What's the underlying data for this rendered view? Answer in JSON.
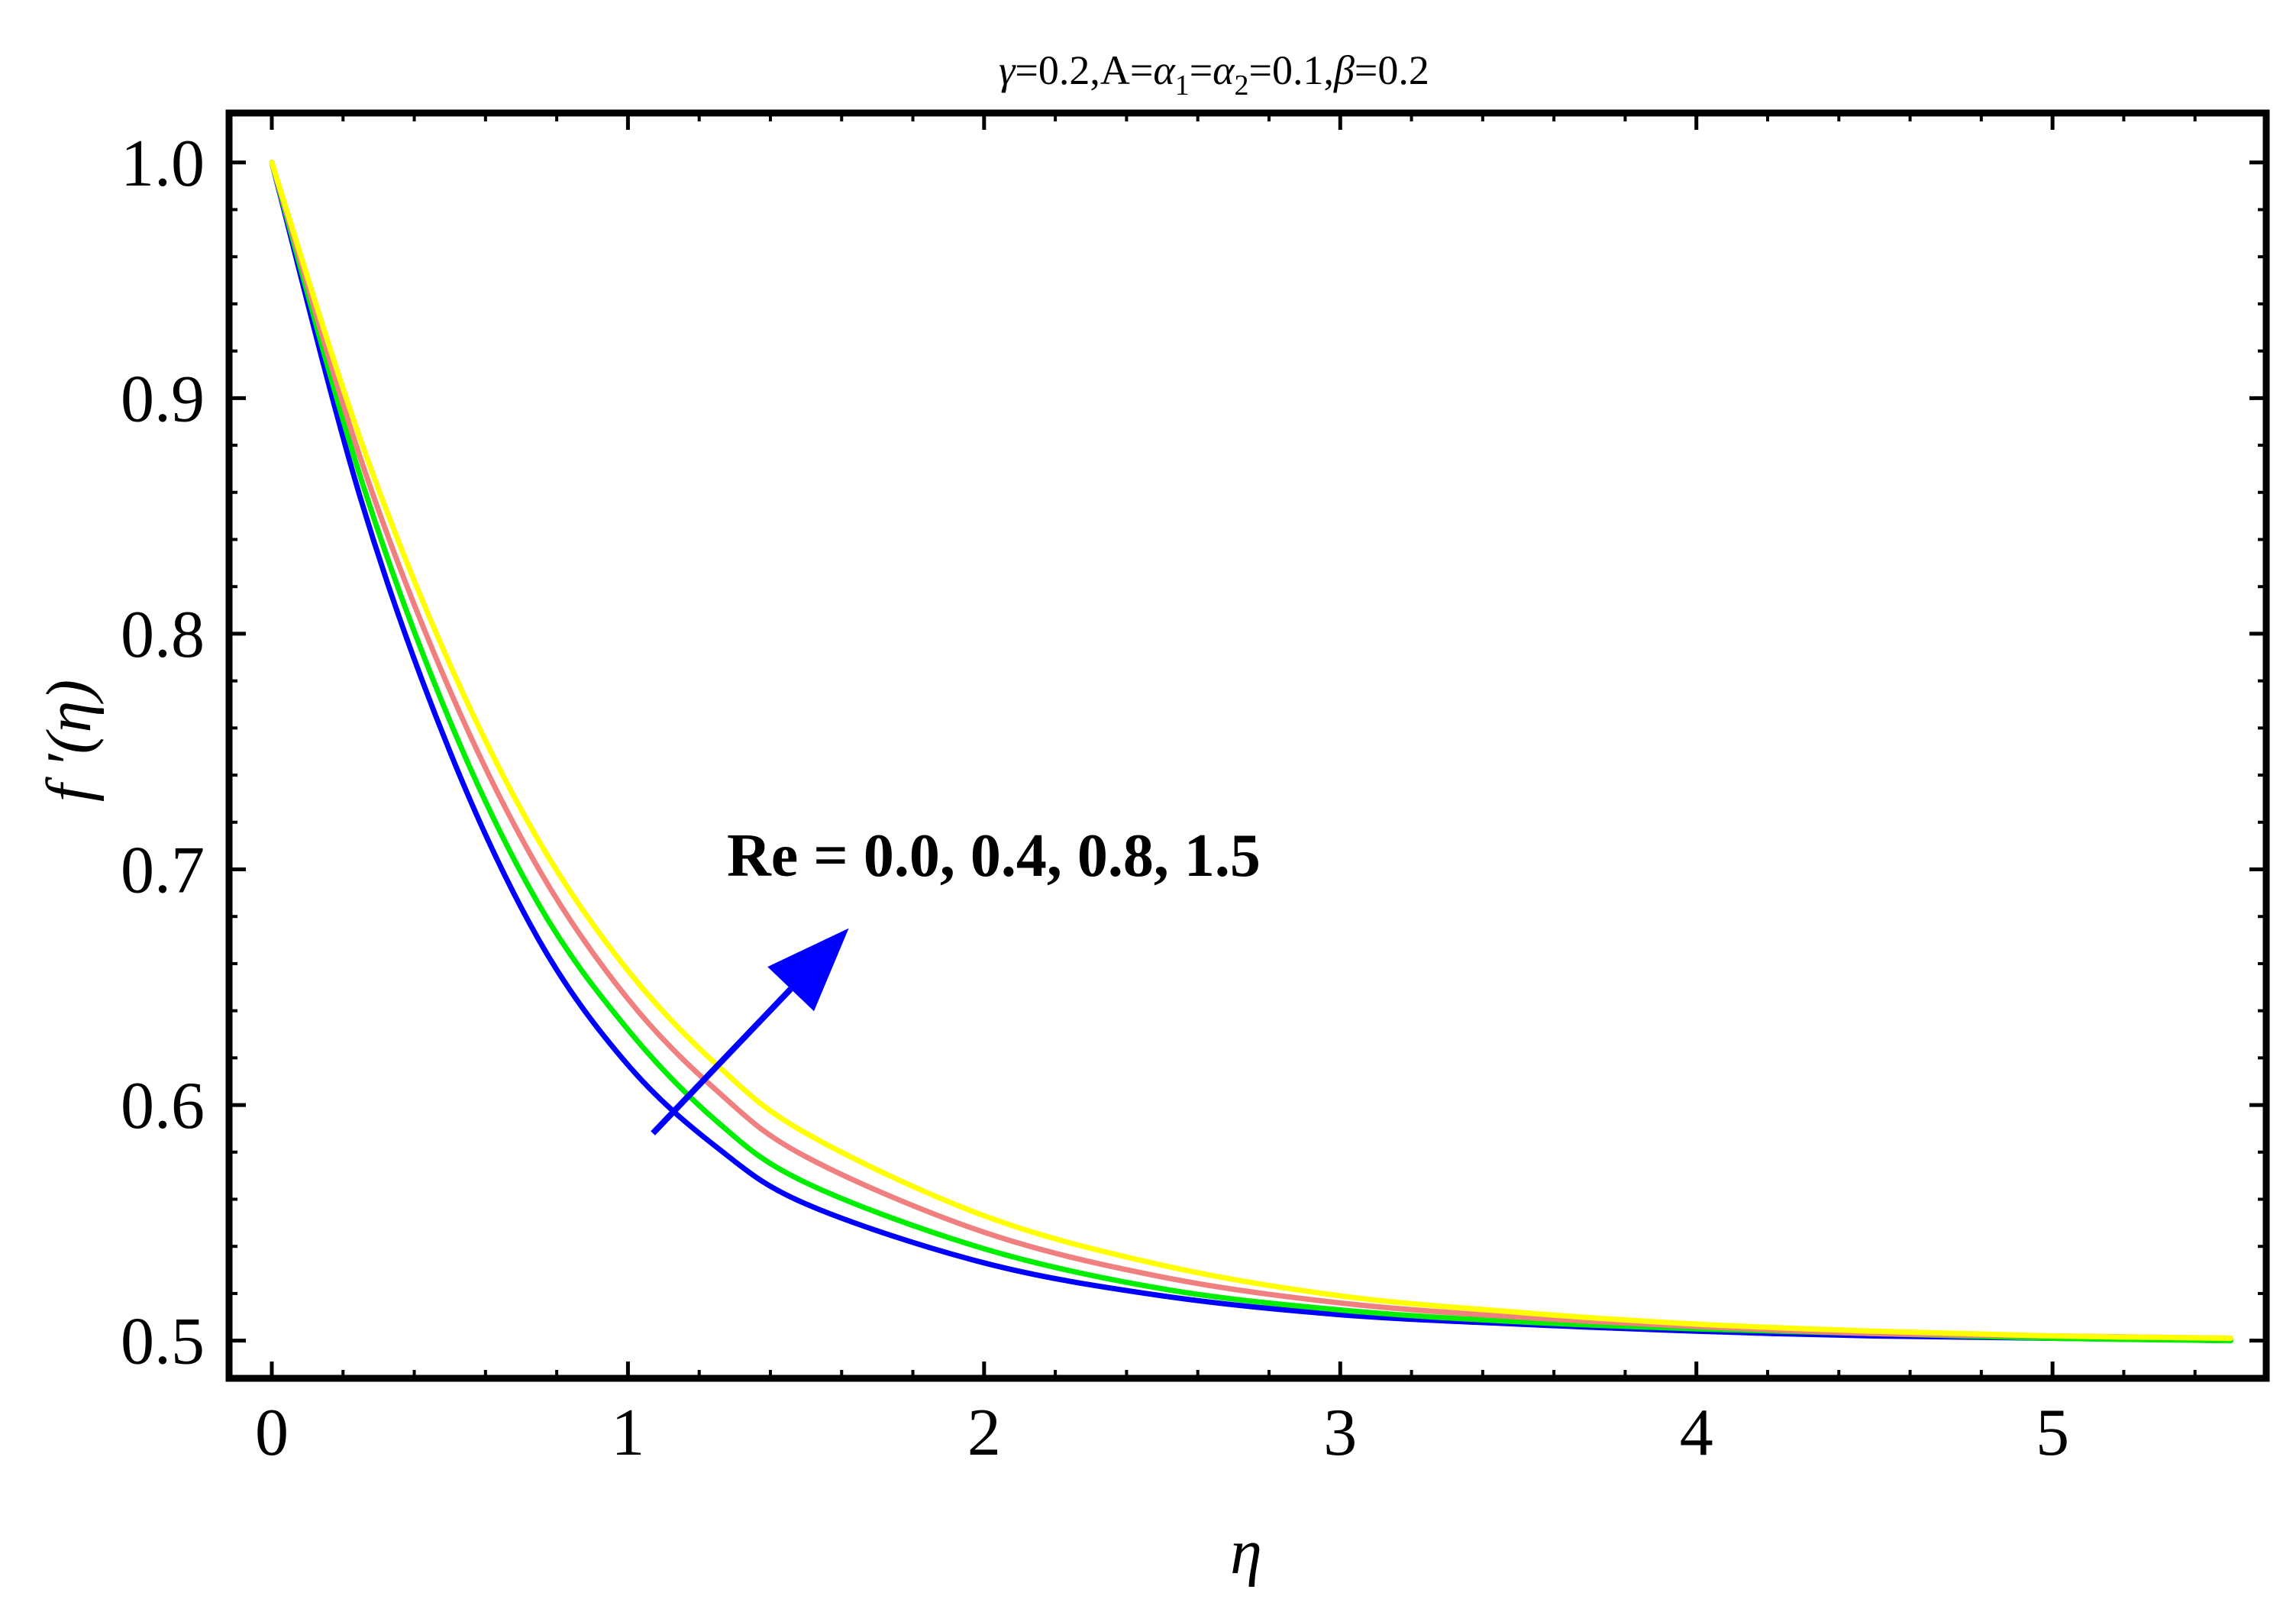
{
  "chart_data": {
    "type": "line",
    "title": "γ=0.2,A=α1=α2=0.1,β=0.2",
    "title_parts": {
      "gamma": "γ",
      "gamma_val": "=0.2,A=",
      "alpha": "α",
      "sub1": "1",
      "eq": "=",
      "sub2": "2",
      "mid": "=0.1,",
      "beta": "β",
      "beta_val": "=0.2"
    },
    "xlabel": "η",
    "ylabel": "f ′(η)",
    "xlim": [
      -0.12,
      5.6
    ],
    "ylim": [
      0.484,
      1.021
    ],
    "x_ticks": [
      0,
      1,
      2,
      3,
      4,
      5
    ],
    "x_tick_labels": [
      "0",
      "1",
      "2",
      "3",
      "4",
      "5"
    ],
    "y_ticks": [
      0.5,
      0.6,
      0.7,
      0.8,
      0.9,
      1.0
    ],
    "y_tick_labels": [
      "0.5",
      "0.6",
      "0.7",
      "0.8",
      "0.9",
      "1.0"
    ],
    "grid": false,
    "x_range": [
      0,
      5.5
    ],
    "series": [
      {
        "color": "#0000ff",
        "x": [
          0,
          0.25,
          0.5,
          0.75,
          1.0,
          1.25,
          1.5,
          2.0,
          2.5,
          3.0,
          3.5,
          4.0,
          4.5,
          5.0,
          5.5
        ],
        "values": [
          1.0,
          0.857,
          0.75,
          0.67,
          0.617,
          0.582,
          0.558,
          0.533,
          0.519,
          0.511,
          0.507,
          0.504,
          0.502,
          0.501,
          0.5
        ]
      },
      {
        "color": "#00ee00",
        "x": [
          0,
          0.25,
          0.5,
          0.75,
          1.0,
          1.25,
          1.5,
          2.0,
          2.5,
          3.0,
          3.5,
          4.0,
          4.5,
          5.0,
          5.5
        ],
        "values": [
          1.0,
          0.866,
          0.763,
          0.685,
          0.632,
          0.593,
          0.567,
          0.539,
          0.522,
          0.513,
          0.508,
          0.505,
          0.503,
          0.501,
          0.5
        ]
      },
      {
        "color": "#f08080",
        "x": [
          0,
          0.25,
          0.5,
          0.75,
          1.0,
          1.25,
          1.5,
          2.0,
          2.5,
          3.0,
          3.5,
          4.0,
          4.5,
          5.0,
          5.5
        ],
        "values": [
          1.0,
          0.874,
          0.776,
          0.7,
          0.645,
          0.606,
          0.578,
          0.546,
          0.527,
          0.516,
          0.51,
          0.506,
          0.503,
          0.502,
          0.501
        ]
      },
      {
        "color": "#ffff00",
        "x": [
          0,
          0.25,
          0.5,
          0.75,
          1.0,
          1.25,
          1.5,
          2.0,
          2.5,
          3.0,
          3.5,
          4.0,
          4.5,
          5.0,
          5.5
        ],
        "values": [
          1.0,
          0.882,
          0.787,
          0.712,
          0.657,
          0.617,
          0.588,
          0.553,
          0.532,
          0.519,
          0.512,
          0.507,
          0.504,
          0.502,
          0.501
        ]
      }
    ],
    "annotation": {
      "text": "Re = 0.0, 0.4, 0.8, 1.5",
      "arrow_color": "#0000ff",
      "arrow_from": [
        1.07,
        0.588
      ],
      "arrow_to": [
        1.62,
        0.675
      ]
    }
  }
}
